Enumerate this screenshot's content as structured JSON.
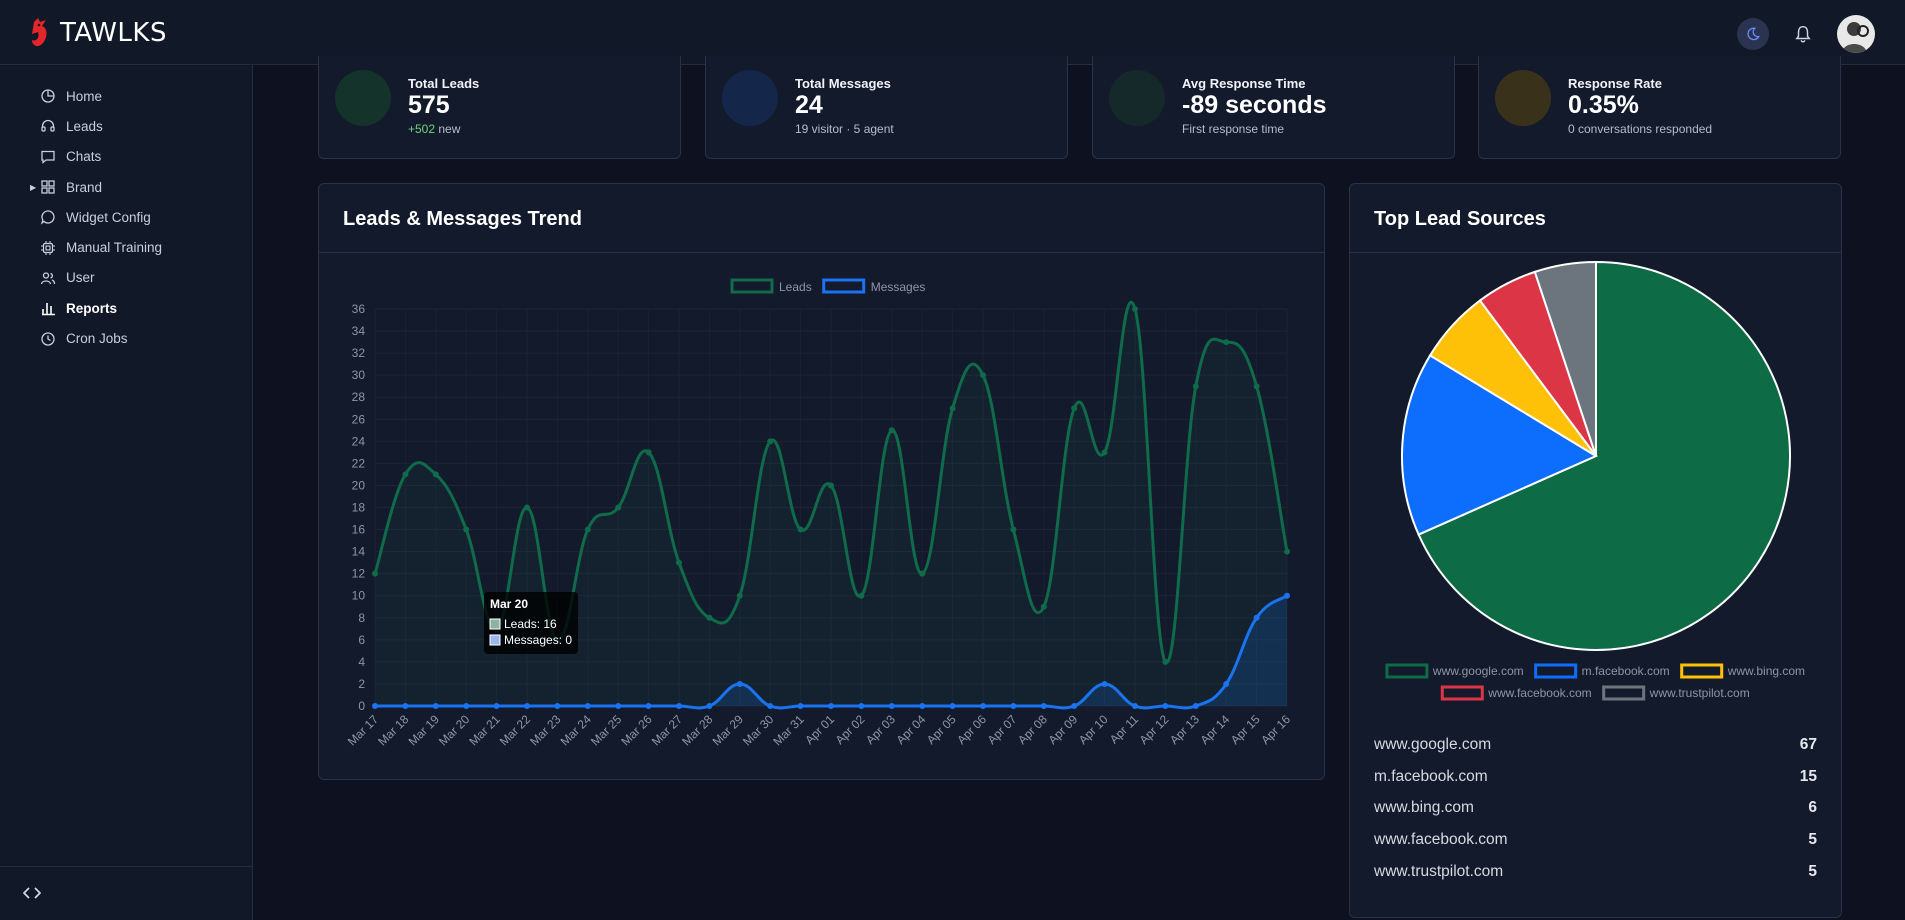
{
  "brand": {
    "name": "TAWLKS"
  },
  "topbar": {
    "theme_icon": "moon-icon",
    "bell_icon": "bell-icon",
    "avatar_icon": "avatar-icon"
  },
  "sidebar": {
    "items": [
      {
        "label": "Home",
        "icon": "pie-chart-icon"
      },
      {
        "label": "Leads",
        "icon": "headset-icon"
      },
      {
        "label": "Chats",
        "icon": "chat-icon"
      },
      {
        "label": "Brand",
        "icon": "grid-icon"
      },
      {
        "label": "Widget Config",
        "icon": "bubble-icon"
      },
      {
        "label": "Manual Training",
        "icon": "cpu-icon"
      },
      {
        "label": "User",
        "icon": "users-icon"
      },
      {
        "label": "Reports",
        "icon": "bar-chart-icon"
      },
      {
        "label": "Cron Jobs",
        "icon": "clock-icon"
      }
    ],
    "active": "Reports",
    "collapse_icon": "code-icon"
  },
  "stats": [
    {
      "label": "Total Leads",
      "value": "575",
      "sub_highlight": "+502",
      "sub": " new",
      "color": "#14332b"
    },
    {
      "label": "Total Messages",
      "value": "24",
      "sub_highlight": "",
      "sub": "19 visitor · 5 agent",
      "color": "#14274b"
    },
    {
      "label": "Avg Response Time",
      "value": "-89 seconds",
      "sub_highlight": "",
      "sub": "First response time",
      "color": "#15282a"
    },
    {
      "label": "Response Rate",
      "value": "0.35%",
      "sub_highlight": "",
      "sub": "0 conversations responded",
      "color": "#3a311a"
    }
  ],
  "trend_panel": {
    "title": "Leads & Messages Trend"
  },
  "sources_panel": {
    "title": "Top Lead Sources"
  },
  "tooltip": {
    "title": "Mar 20",
    "line1": "Leads: 16",
    "line2": "Messages: 0"
  },
  "chart_data": [
    {
      "type": "line",
      "title": "Leads & Messages Trend",
      "categories": [
        "Mar 17",
        "Mar 18",
        "Mar 19",
        "Mar 20",
        "Mar 21",
        "Mar 22",
        "Mar 23",
        "Mar 24",
        "Mar 25",
        "Mar 26",
        "Mar 27",
        "Mar 28",
        "Mar 29",
        "Mar 30",
        "Mar 31",
        "Apr 01",
        "Apr 02",
        "Apr 03",
        "Apr 04",
        "Apr 05",
        "Apr 06",
        "Apr 07",
        "Apr 08",
        "Apr 09",
        "Apr 10",
        "Apr 11",
        "Apr 12",
        "Apr 13",
        "Apr 14",
        "Apr 15",
        "Apr 16"
      ],
      "series": [
        {
          "name": "Leads",
          "color": "#0f6b4a",
          "values": [
            12,
            21,
            21,
            16,
            7,
            18,
            6,
            16,
            18,
            23,
            13,
            8,
            10,
            24,
            16,
            20,
            10,
            25,
            12,
            27,
            30,
            16,
            9,
            27,
            23,
            36,
            4,
            29,
            33,
            29,
            14
          ]
        },
        {
          "name": "Messages",
          "color": "#1a73f0",
          "values": [
            0,
            0,
            0,
            0,
            0,
            0,
            0,
            0,
            0,
            0,
            0,
            0,
            2,
            0,
            0,
            0,
            0,
            0,
            0,
            0,
            0,
            0,
            0,
            0,
            2,
            0,
            0,
            0,
            2,
            8,
            10
          ]
        }
      ],
      "ylim": [
        0,
        36
      ],
      "yticks": [
        0,
        2,
        4,
        6,
        8,
        10,
        12,
        14,
        16,
        18,
        20,
        22,
        24,
        26,
        28,
        30,
        32,
        34,
        36
      ],
      "legend": "top"
    },
    {
      "type": "pie",
      "title": "Top Lead Sources",
      "categories": [
        "www.google.com",
        "m.facebook.com",
        "www.bing.com",
        "www.facebook.com",
        "www.trustpilot.com"
      ],
      "values": [
        67,
        15,
        6,
        5,
        5
      ],
      "colors": [
        "#0d6b45",
        "#0d6efd",
        "#ffc107",
        "#dc3545",
        "#6c757d"
      ],
      "legend": "bottom"
    }
  ]
}
